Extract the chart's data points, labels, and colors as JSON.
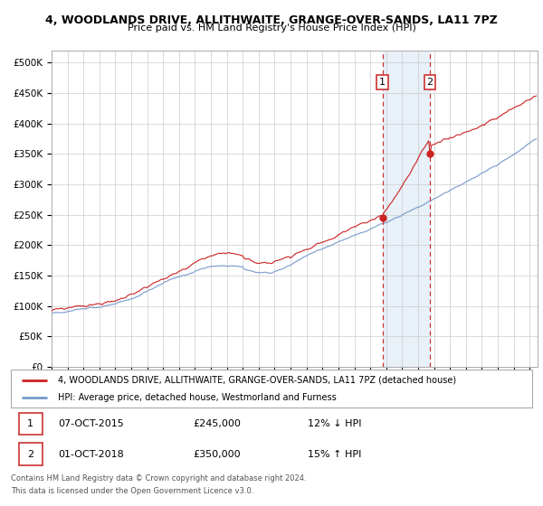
{
  "title": "4, WOODLANDS DRIVE, ALLITHWAITE, GRANGE-OVER-SANDS, LA11 7PZ",
  "subtitle": "Price paid vs. HM Land Registry's House Price Index (HPI)",
  "xlim_start": 1995.0,
  "xlim_end": 2025.5,
  "ylim": [
    0,
    520000
  ],
  "yticks": [
    0,
    50000,
    100000,
    150000,
    200000,
    250000,
    300000,
    350000,
    400000,
    450000,
    500000
  ],
  "ytick_labels": [
    "£0",
    "£50K",
    "£100K",
    "£150K",
    "£200K",
    "£250K",
    "£300K",
    "£350K",
    "£400K",
    "£450K",
    "£500K"
  ],
  "xticks": [
    1995,
    1996,
    1997,
    1998,
    1999,
    2000,
    2001,
    2002,
    2003,
    2004,
    2005,
    2006,
    2007,
    2008,
    2009,
    2010,
    2011,
    2012,
    2013,
    2014,
    2015,
    2016,
    2017,
    2018,
    2019,
    2020,
    2021,
    2022,
    2023,
    2024,
    2025
  ],
  "hpi_color": "#7799cc",
  "price_color": "#cc2222",
  "marker_color": "#cc2222",
  "vline_color": "#cc3333",
  "shade_color": "#e8f0f8",
  "point1_x": 2015.77,
  "point1_y": 245000,
  "point2_x": 2018.75,
  "point2_y": 350000,
  "legend_label_price": "4, WOODLANDS DRIVE, ALLITHWAITE, GRANGE-OVER-SANDS, LA11 7PZ (detached house)",
  "legend_label_hpi": "HPI: Average price, detached house, Westmorland and Furness",
  "table_row1": [
    "1",
    "07-OCT-2015",
    "£245,000",
    "12% ↓ HPI"
  ],
  "table_row2": [
    "2",
    "01-OCT-2018",
    "£350,000",
    "15% ↑ HPI"
  ],
  "footer1": "Contains HM Land Registry data © Crown copyright and database right 2024.",
  "footer2": "This data is licensed under the Open Government Licence v3.0.",
  "background_color": "#ffffff",
  "grid_color": "#cccccc"
}
